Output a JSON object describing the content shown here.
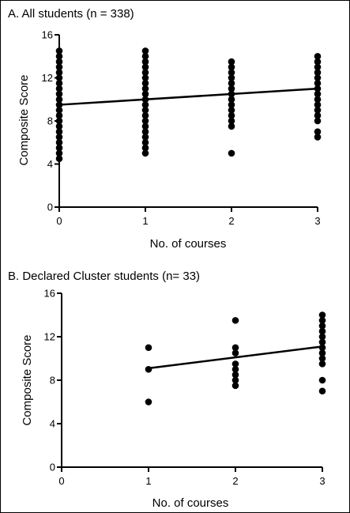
{
  "figure": {
    "ink_color": "#000000",
    "background_color": "#ffffff"
  },
  "chart_data": [
    {
      "type": "scatter",
      "title": "A. All students (n = 338)",
      "xlabel": "No. of courses",
      "ylabel": "Composite Score",
      "xlim": [
        0,
        3
      ],
      "ylim": [
        0,
        16
      ],
      "x_ticks": [
        0,
        1,
        2,
        3
      ],
      "y_ticks": [
        0,
        4,
        8,
        12,
        16
      ],
      "grid": false,
      "legend": "none",
      "series": [
        {
          "points": [
            {
              "x": 0,
              "y": 4.5
            },
            {
              "x": 0,
              "y": 5
            },
            {
              "x": 0,
              "y": 5.5
            },
            {
              "x": 0,
              "y": 6
            },
            {
              "x": 0,
              "y": 6.5
            },
            {
              "x": 0,
              "y": 7
            },
            {
              "x": 0,
              "y": 7.5
            },
            {
              "x": 0,
              "y": 8
            },
            {
              "x": 0,
              "y": 8.5
            },
            {
              "x": 0,
              "y": 9
            },
            {
              "x": 0,
              "y": 9.5
            },
            {
              "x": 0,
              "y": 10
            },
            {
              "x": 0,
              "y": 10.5
            },
            {
              "x": 0,
              "y": 11
            },
            {
              "x": 0,
              "y": 11.5
            },
            {
              "x": 0,
              "y": 12
            },
            {
              "x": 0,
              "y": 12.5
            },
            {
              "x": 0,
              "y": 13
            },
            {
              "x": 0,
              "y": 13.5
            },
            {
              "x": 0,
              "y": 14
            },
            {
              "x": 0,
              "y": 14.5
            },
            {
              "x": 1,
              "y": 5
            },
            {
              "x": 1,
              "y": 5.5
            },
            {
              "x": 1,
              "y": 6
            },
            {
              "x": 1,
              "y": 6.5
            },
            {
              "x": 1,
              "y": 7
            },
            {
              "x": 1,
              "y": 7.5
            },
            {
              "x": 1,
              "y": 8
            },
            {
              "x": 1,
              "y": 8.5
            },
            {
              "x": 1,
              "y": 9
            },
            {
              "x": 1,
              "y": 9.5
            },
            {
              "x": 1,
              "y": 10
            },
            {
              "x": 1,
              "y": 10.5
            },
            {
              "x": 1,
              "y": 11
            },
            {
              "x": 1,
              "y": 11.5
            },
            {
              "x": 1,
              "y": 12
            },
            {
              "x": 1,
              "y": 12.5
            },
            {
              "x": 1,
              "y": 13
            },
            {
              "x": 1,
              "y": 13.5
            },
            {
              "x": 1,
              "y": 14
            },
            {
              "x": 1,
              "y": 14.5
            },
            {
              "x": 2,
              "y": 5
            },
            {
              "x": 2,
              "y": 7.5
            },
            {
              "x": 2,
              "y": 8
            },
            {
              "x": 2,
              "y": 8.5
            },
            {
              "x": 2,
              "y": 9
            },
            {
              "x": 2,
              "y": 9.5
            },
            {
              "x": 2,
              "y": 10
            },
            {
              "x": 2,
              "y": 10.5
            },
            {
              "x": 2,
              "y": 11
            },
            {
              "x": 2,
              "y": 11.5
            },
            {
              "x": 2,
              "y": 12
            },
            {
              "x": 2,
              "y": 12.5
            },
            {
              "x": 2,
              "y": 13
            },
            {
              "x": 2,
              "y": 13.5
            },
            {
              "x": 3,
              "y": 6.5
            },
            {
              "x": 3,
              "y": 7
            },
            {
              "x": 3,
              "y": 8
            },
            {
              "x": 3,
              "y": 8.5
            },
            {
              "x": 3,
              "y": 9
            },
            {
              "x": 3,
              "y": 9.5
            },
            {
              "x": 3,
              "y": 10
            },
            {
              "x": 3,
              "y": 10.5
            },
            {
              "x": 3,
              "y": 11
            },
            {
              "x": 3,
              "y": 11.5
            },
            {
              "x": 3,
              "y": 12
            },
            {
              "x": 3,
              "y": 12.5
            },
            {
              "x": 3,
              "y": 13
            },
            {
              "x": 3,
              "y": 13.5
            },
            {
              "x": 3,
              "y": 14
            }
          ]
        }
      ],
      "trend_line": {
        "x": [
          0,
          3
        ],
        "y": [
          9.5,
          11
        ]
      }
    },
    {
      "type": "scatter",
      "title": "B. Declared Cluster students (n= 33)",
      "xlabel": "No. of courses",
      "ylabel": "Composite Score",
      "xlim": [
        0,
        3
      ],
      "ylim": [
        0,
        16
      ],
      "x_ticks": [
        0,
        1,
        2,
        3
      ],
      "y_ticks": [
        0,
        4,
        8,
        12,
        16
      ],
      "grid": false,
      "legend": "none",
      "series": [
        {
          "points": [
            {
              "x": 1,
              "y": 6
            },
            {
              "x": 1,
              "y": 9
            },
            {
              "x": 1,
              "y": 11
            },
            {
              "x": 2,
              "y": 7.5
            },
            {
              "x": 2,
              "y": 8
            },
            {
              "x": 2,
              "y": 8.5
            },
            {
              "x": 2,
              "y": 9
            },
            {
              "x": 2,
              "y": 9.5
            },
            {
              "x": 2,
              "y": 10.5
            },
            {
              "x": 2,
              "y": 11
            },
            {
              "x": 2,
              "y": 13.5
            },
            {
              "x": 3,
              "y": 7
            },
            {
              "x": 3,
              "y": 8
            },
            {
              "x": 3,
              "y": 9.5
            },
            {
              "x": 3,
              "y": 10
            },
            {
              "x": 3,
              "y": 10.5
            },
            {
              "x": 3,
              "y": 11
            },
            {
              "x": 3,
              "y": 11.5
            },
            {
              "x": 3,
              "y": 12
            },
            {
              "x": 3,
              "y": 12.5
            },
            {
              "x": 3,
              "y": 13
            },
            {
              "x": 3,
              "y": 13.5
            },
            {
              "x": 3,
              "y": 14
            }
          ]
        }
      ],
      "trend_line": {
        "x": [
          1,
          3
        ],
        "y": [
          9.1,
          11.1
        ]
      }
    }
  ]
}
